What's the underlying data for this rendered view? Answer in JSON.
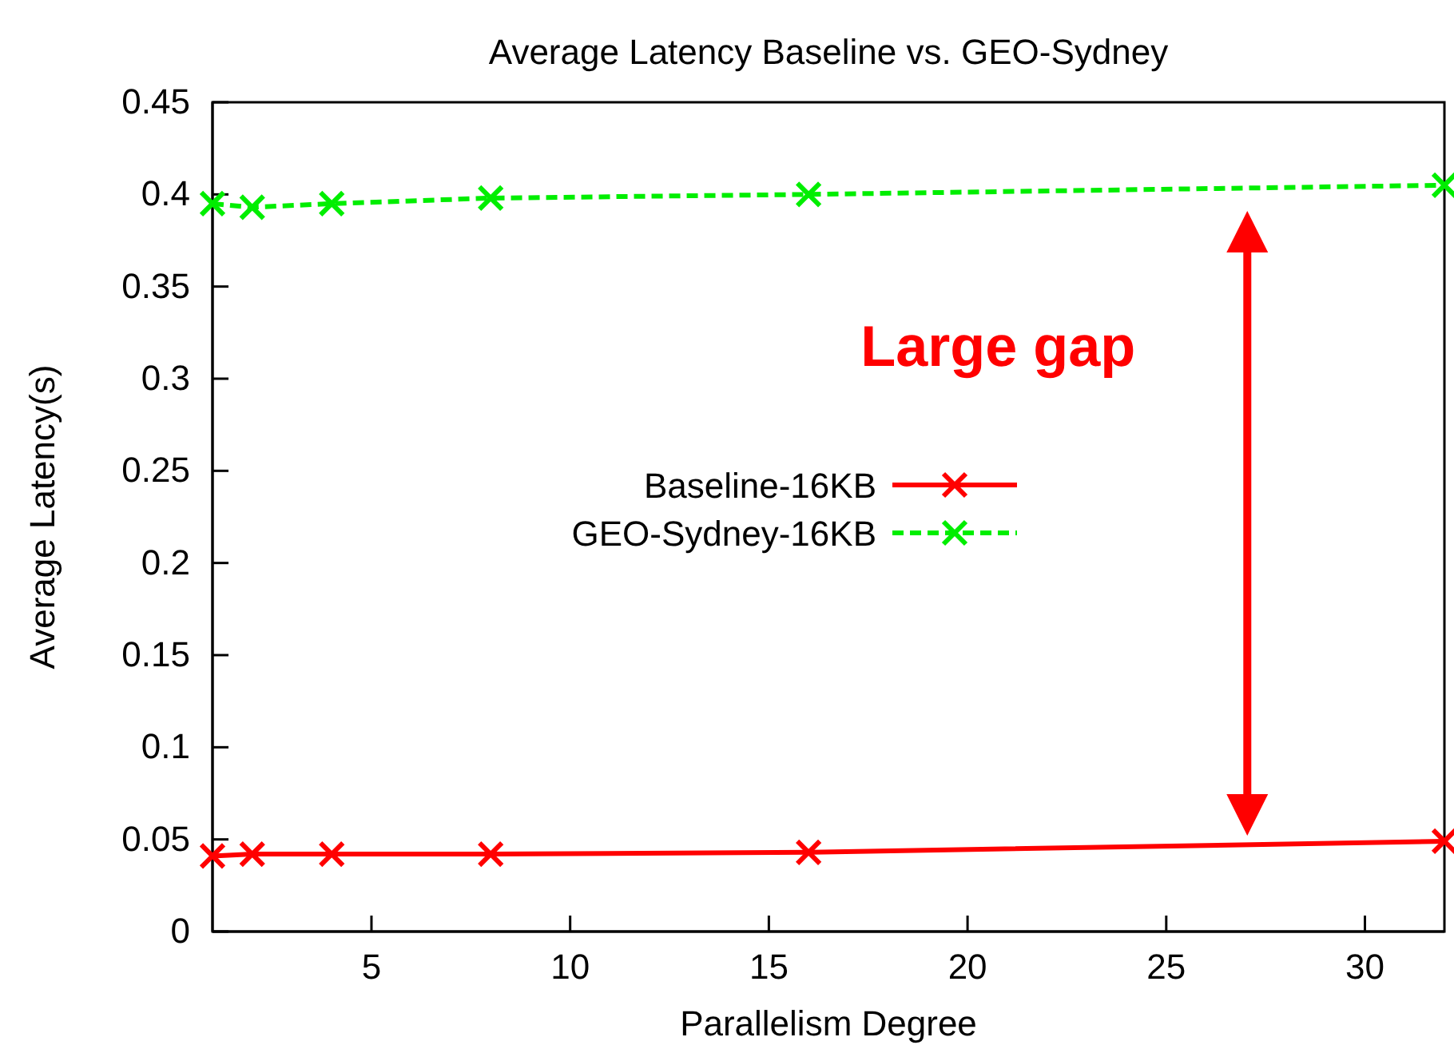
{
  "chart_data": {
    "type": "line",
    "title": "Average Latency Baseline vs. GEO-Sydney",
    "xlabel": "Parallelism Degree",
    "ylabel": "Average Latency(s)",
    "x": [
      1,
      2,
      4,
      8,
      16,
      32
    ],
    "series": [
      {
        "name": "Baseline-16KB",
        "color": "#ff0000",
        "values": [
          0.041,
          0.042,
          0.042,
          0.042,
          0.043,
          0.049
        ],
        "marker": "cross",
        "line_style": "solid"
      },
      {
        "name": "GEO-Sydney-16KB",
        "color": "#00ee00",
        "values": [
          0.395,
          0.393,
          0.395,
          0.398,
          0.4,
          0.405
        ],
        "marker": "cross",
        "line_style": "dashed"
      }
    ],
    "xlim": [
      1,
      32
    ],
    "xticks": [
      5,
      10,
      15,
      20,
      25,
      30
    ],
    "ylim": [
      0,
      0.45
    ],
    "yticks": [
      0,
      0.05,
      0.1,
      0.15,
      0.2,
      0.25,
      0.3,
      0.35,
      0.4,
      0.45
    ],
    "grid": false,
    "legend": "center",
    "annotations": [
      "Large gap"
    ]
  }
}
